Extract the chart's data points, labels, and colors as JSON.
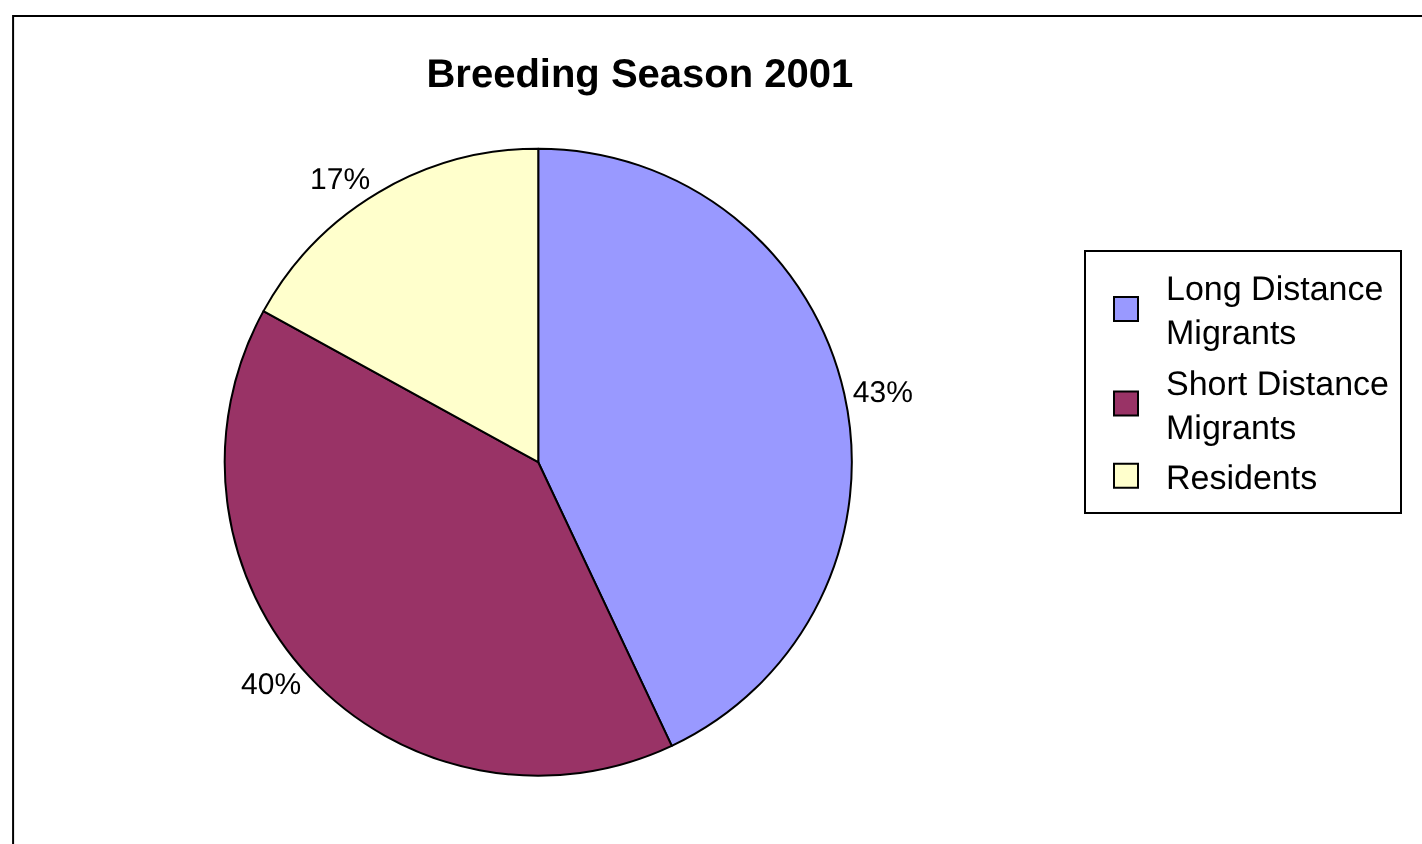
{
  "chart_data": {
    "type": "pie",
    "title": "Breeding Season 2001",
    "categories": [
      "Long Distance Migrants",
      "Short Distance Migrants",
      "Residents"
    ],
    "values": [
      43,
      40,
      17
    ],
    "colors": [
      "#9999ff",
      "#993366",
      "#ffffcc"
    ],
    "value_labels": [
      "43%",
      "40%",
      "17%"
    ],
    "legend": "right"
  }
}
